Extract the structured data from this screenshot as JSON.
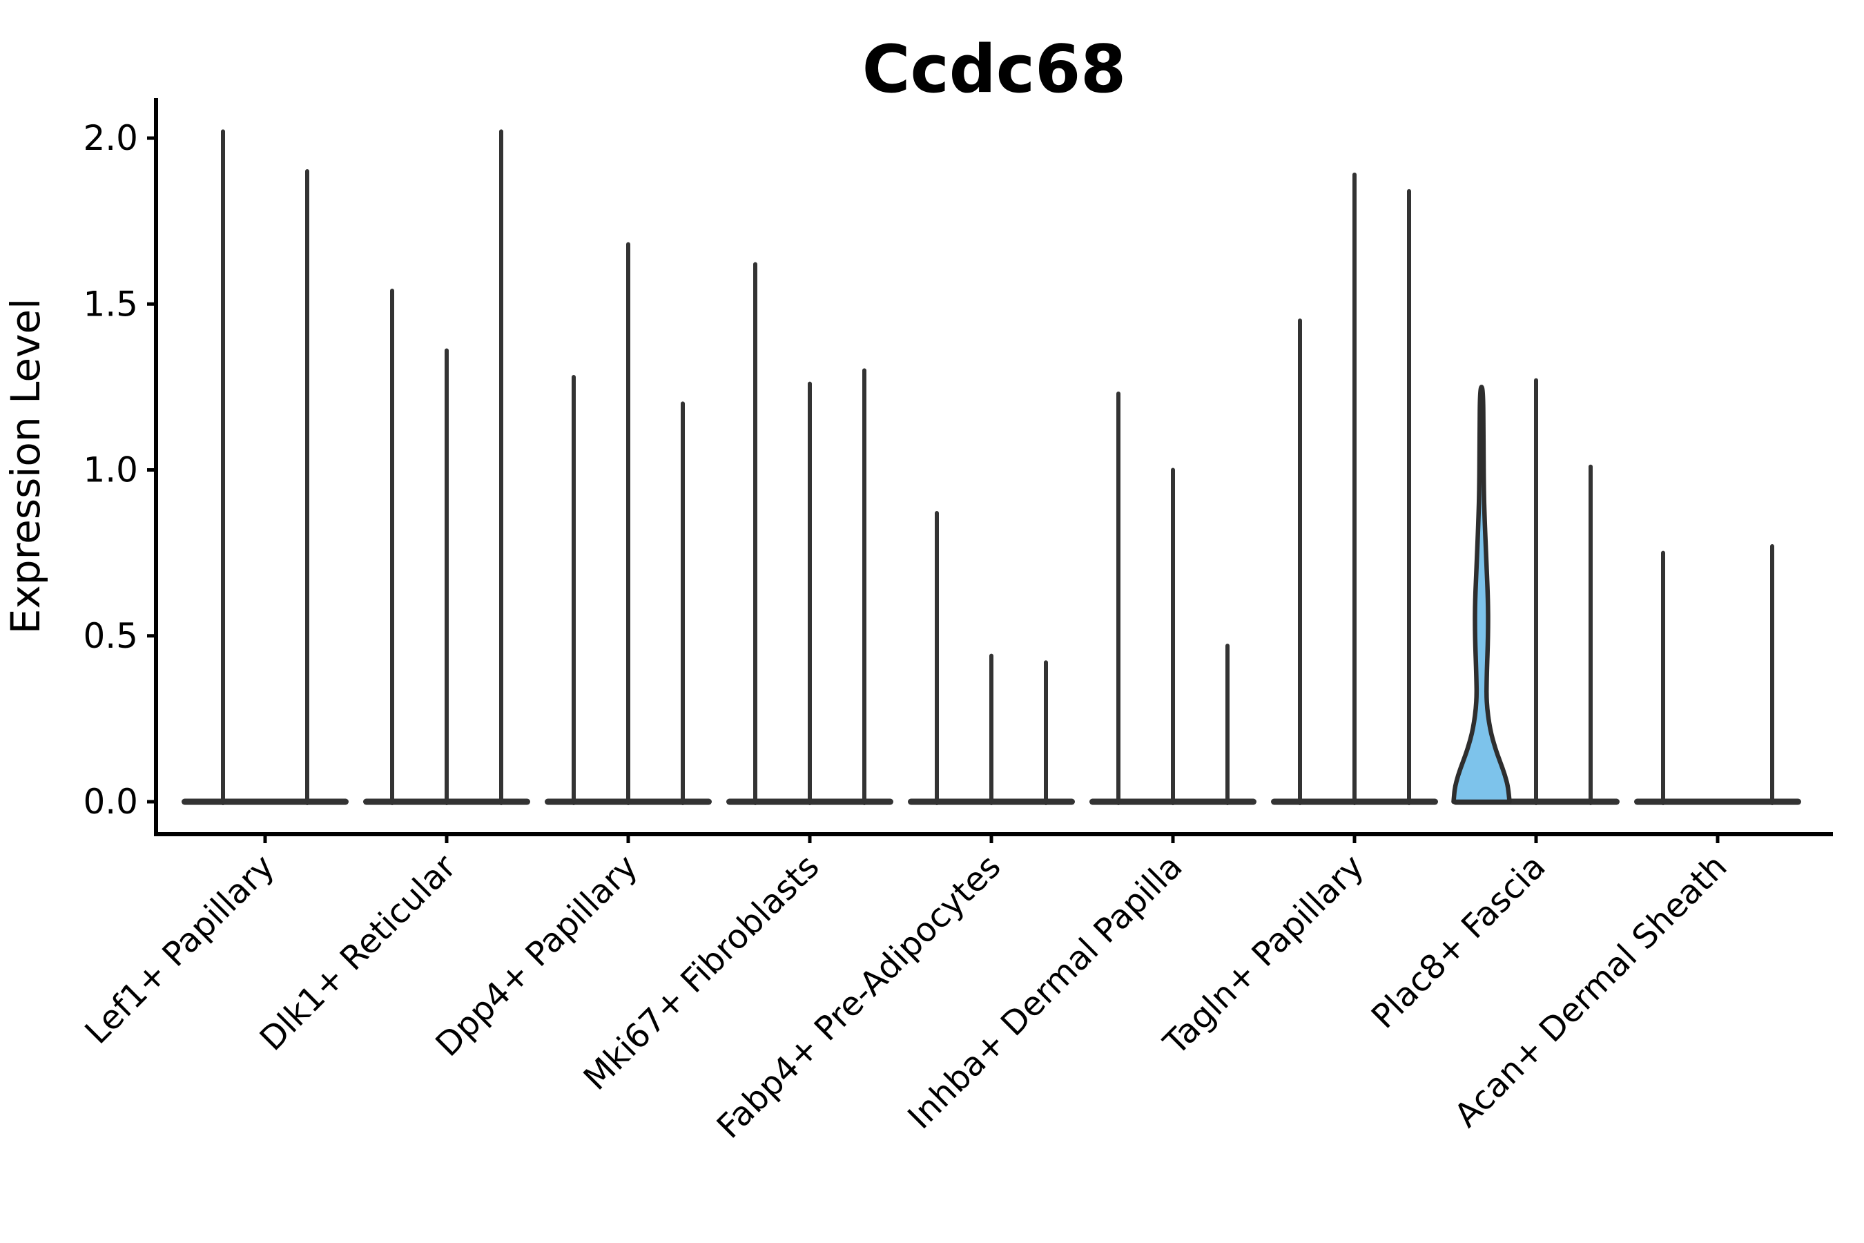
{
  "figure": {
    "background": "#ffffff"
  },
  "colors": {
    "axis": "#000000",
    "violin_stroke": "#333333",
    "baseline_blob": "#333333",
    "highlight_fill": "#7dc3eb",
    "highlight_stroke": "#2e2e2e",
    "text": "#000000"
  },
  "chart_data": {
    "type": "violin",
    "title": "Ccdc68",
    "xlabel": "",
    "ylabel": "Expression Level",
    "ylim": [
      0.0,
      2.12
    ],
    "yticks": [
      "0.0",
      "0.5",
      "1.0",
      "1.5",
      "2.0"
    ],
    "grid": "off",
    "legend": "none",
    "categories": [
      "Lef1+ Papillary",
      "Dlk1+ Reticular",
      "Dpp4+ Papillary",
      "Mki67+ Fibroblasts",
      "Fabp4+ Pre-Adipocytes",
      "Inhba+ Dermal Papilla",
      "Tagln+ Papillary",
      "Plac8+ Fascia",
      "Acan+ Dermal Sheath"
    ],
    "violins": [
      {
        "category": "Lef1+ Papillary",
        "maxima": [
          2.02,
          1.9
        ]
      },
      {
        "category": "Dlk1+ Reticular",
        "maxima": [
          1.54,
          1.36,
          2.02
        ]
      },
      {
        "category": "Dpp4+ Papillary",
        "maxima": [
          1.28,
          1.68,
          1.2
        ]
      },
      {
        "category": "Mki67+ Fibroblasts",
        "maxima": [
          1.62,
          1.26,
          1.3
        ]
      },
      {
        "category": "Fabp4+ Pre-Adipocytes",
        "maxima": [
          0.87,
          0.44,
          0.42
        ]
      },
      {
        "category": "Inhba+ Dermal Papilla",
        "maxima": [
          1.23,
          1.0,
          0.47
        ]
      },
      {
        "category": "Tagln+ Papillary",
        "maxima": [
          1.45,
          1.89,
          1.84
        ]
      },
      {
        "category": "Plac8+ Fascia",
        "maxima": [
          1.25,
          1.27,
          1.01
        ]
      },
      {
        "category": "Acan+ Dermal Sheath",
        "maxima": [
          0.75,
          0.0,
          0.77
        ]
      }
    ],
    "highlight": {
      "category_index": 7,
      "violin_index": 0,
      "max": 1.25,
      "fill": "#7dc3eb",
      "profile": [
        [
          0.0,
          40.5
        ],
        [
          0.04,
          39.0
        ],
        [
          0.08,
          34.0
        ],
        [
          0.12,
          27.0
        ],
        [
          0.16,
          20.0
        ],
        [
          0.22,
          12.0
        ],
        [
          0.3,
          7.0
        ],
        [
          0.38,
          7.5
        ],
        [
          0.5,
          9.5
        ],
        [
          0.6,
          9.5
        ],
        [
          0.72,
          7.0
        ],
        [
          0.85,
          4.5
        ],
        [
          0.95,
          3.2
        ],
        [
          1.1,
          2.8
        ],
        [
          1.25,
          2.2
        ]
      ]
    }
  }
}
